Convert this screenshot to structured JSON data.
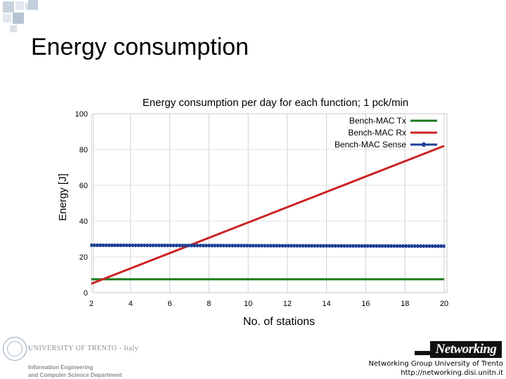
{
  "slide": {
    "title": "Energy consumption"
  },
  "footer": {
    "university_name": "UNIVERSITY OF TRENTO - Italy",
    "department_line1": "Information Engineering",
    "department_line2": "and Computer Science Department",
    "logo_text": "Networking",
    "group_line": "Networking Group University of Trento",
    "url_line": "http://networking.disi.unitn.it"
  },
  "colors": {
    "tx": "#1a7a1a",
    "rx": "#cc2222",
    "sense": "#1c3f94",
    "corner_square_dark": "#a9b8c8",
    "corner_square_light": "#d2dbe5"
  },
  "chart_data": {
    "type": "line",
    "title": "Energy consumption per day for each function; 1 pck/min",
    "xlabel": "No. of stations",
    "ylabel": "Energy [J]",
    "xlim": [
      2,
      20
    ],
    "ylim": [
      0,
      100
    ],
    "xticks": [
      2,
      4,
      6,
      8,
      10,
      12,
      14,
      16,
      18,
      20
    ],
    "yticks": [
      0,
      20,
      40,
      60,
      80,
      100
    ],
    "grid": true,
    "legend_position": "top-right",
    "series": [
      {
        "name": "Bench-MAC Tx",
        "color_key": "tx",
        "markers": false,
        "x": [
          2,
          20
        ],
        "y": [
          7.5,
          7.5
        ]
      },
      {
        "name": "Bench-MAC Rx",
        "color_key": "rx",
        "markers": false,
        "x": [
          2,
          20
        ],
        "y": [
          5,
          82
        ]
      },
      {
        "name": "Bench-MAC Sense",
        "color_key": "sense",
        "markers": true,
        "x": [
          2,
          20
        ],
        "y": [
          26.5,
          26
        ]
      }
    ]
  }
}
